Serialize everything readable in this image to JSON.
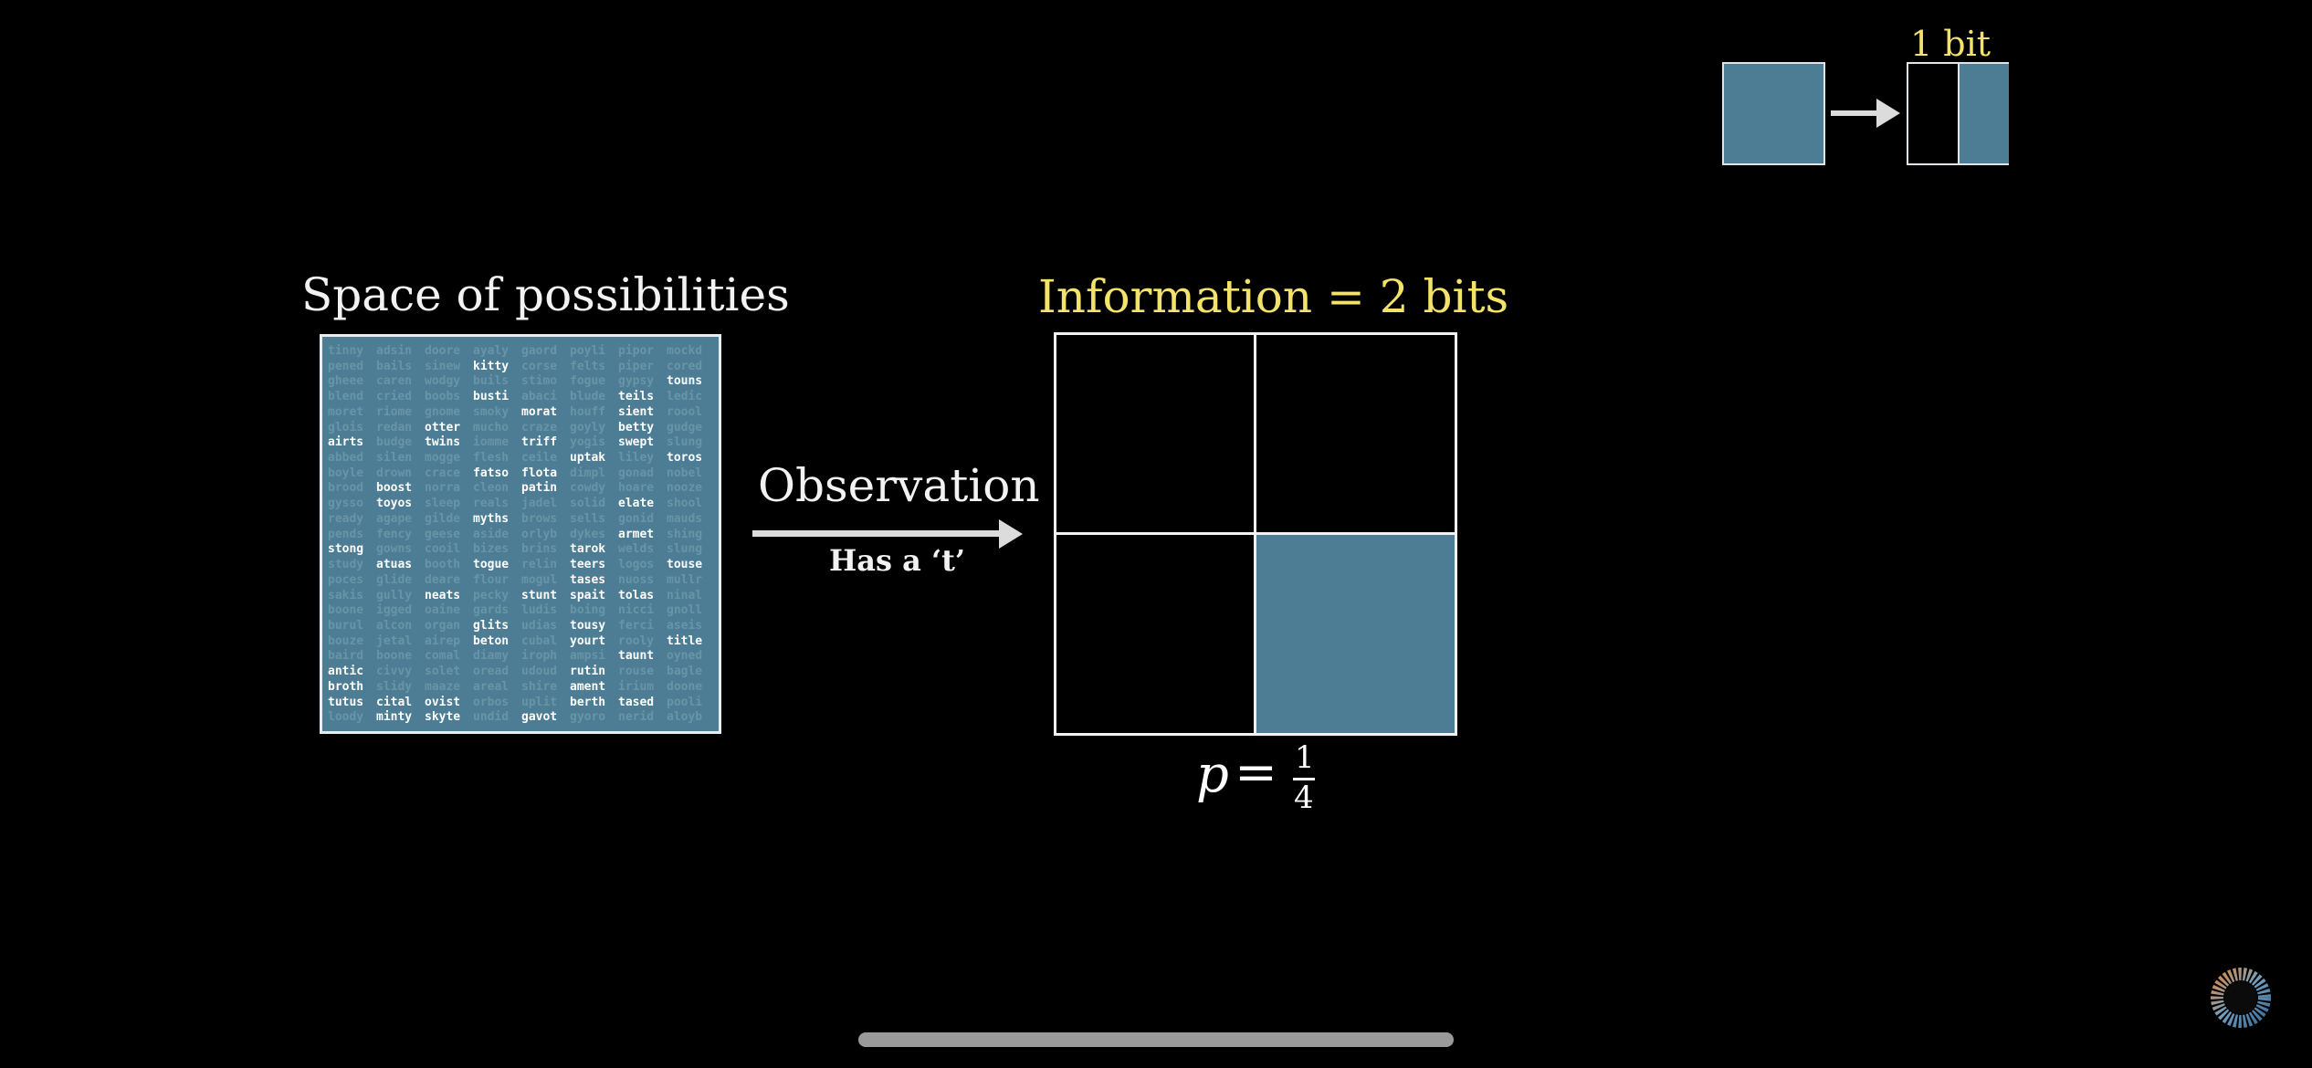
{
  "titles": {
    "space": "Space of possibilities",
    "information": "Information = 2 bits",
    "one_bit": "1 bit",
    "observation": "Observation",
    "observation_sub": "Has a ‘t’"
  },
  "probability": {
    "variable": "p",
    "equals": "=",
    "numerator": "1",
    "denominator": "4"
  },
  "colors": {
    "accent_blue": "#4c7d94",
    "highlight_yellow": "#f3e36a",
    "background": "#000000"
  },
  "icons": {
    "loading": "progress-ring-icon"
  },
  "word_grid": {
    "columns": 8,
    "highlighted": [
      "kitty",
      "touns",
      "busti",
      "teils",
      "morat",
      "sient",
      "otter",
      "betty",
      "airts",
      "twins",
      "triff",
      "swept",
      "uptak",
      "toros",
      "fatso",
      "flota",
      "boost",
      "patin",
      "toyos",
      "elate",
      "myths",
      "armet",
      "stong",
      "tarok",
      "atuas",
      "togue",
      "teers",
      "touse",
      "tases",
      "neats",
      "stunt",
      "spait",
      "tolas",
      "glits",
      "tousy",
      "beton",
      "yourt",
      "title",
      "taunt",
      "antic",
      "rutin",
      "broth",
      "ament",
      "tutus",
      "cital",
      "ovist",
      "berth",
      "tased",
      "minty",
      "skyte",
      "gavot"
    ],
    "cells": [
      [
        "tinny",
        "adsin",
        "doore",
        "ayaly",
        "gaord",
        "poyli",
        "pipor",
        "mockd"
      ],
      [
        "pened",
        "bails",
        "sinew",
        "kitty",
        "corse",
        "felts",
        "piper",
        "cored"
      ],
      [
        "gheee",
        "caren",
        "wodgy",
        "buils",
        "stimo",
        "fogue",
        "gypsy",
        "touns"
      ],
      [
        "blend",
        "cried",
        "boobs",
        "busti",
        "abaci",
        "blude",
        "teils",
        "ledic"
      ],
      [
        "moret",
        "riome",
        "gnome",
        "smoky",
        "morat",
        "houff",
        "sient",
        "roool"
      ],
      [
        "glois",
        "redan",
        "otter",
        "mucho",
        "craze",
        "goyly",
        "betty",
        "gudge"
      ],
      [
        "airts",
        "budge",
        "twins",
        "iomme",
        "triff",
        "yogis",
        "swept",
        "slung"
      ],
      [
        "abbed",
        "silen",
        "mogge",
        "flesh",
        "ceile",
        "uptak",
        "liley",
        "toros"
      ],
      [
        "boyle",
        "drown",
        "crace",
        "fatso",
        "flota",
        "dimpl",
        "gonad",
        "nobel"
      ],
      [
        "brood",
        "boost",
        "norra",
        "cleon",
        "patin",
        "cowdy",
        "hoare",
        "nooze"
      ],
      [
        "gysso",
        "toyos",
        "sleep",
        "reals",
        "jadel",
        "solid",
        "elate",
        "shool"
      ],
      [
        "ready",
        "agape",
        "gilde",
        "myths",
        "brows",
        "sells",
        "gonid",
        "mauds"
      ],
      [
        "pends",
        "fency",
        "geese",
        "aside",
        "orlyb",
        "dykes",
        "armet",
        "shing"
      ],
      [
        "stong",
        "gowns",
        "cooil",
        "bizes",
        "brins",
        "tarok",
        "welds",
        "slung"
      ],
      [
        "study",
        "atuas",
        "booth",
        "togue",
        "relin",
        "teers",
        "logos",
        "touse"
      ],
      [
        "poces",
        "glide",
        "deare",
        "flour",
        "mogul",
        "tases",
        "nuoss",
        "mullr"
      ],
      [
        "sakis",
        "gully",
        "neats",
        "pecky",
        "stunt",
        "spait",
        "tolas",
        "ninal"
      ],
      [
        "boone",
        "igged",
        "oaine",
        "gards",
        "ludis",
        "boing",
        "nicci",
        "gnoll"
      ],
      [
        "burul",
        "alcon",
        "organ",
        "glits",
        "udias",
        "tousy",
        "ferci",
        "aseis"
      ],
      [
        "bouze",
        "jetal",
        "airep",
        "beton",
        "cubal",
        "yourt",
        "rooly",
        "title"
      ],
      [
        "baird",
        "boone",
        "comal",
        "diamy",
        "iroph",
        "ampsi",
        "taunt",
        "oyned"
      ],
      [
        "antic",
        "civvy",
        "solet",
        "oread",
        "udoud",
        "rutin",
        "rouse",
        "bagle"
      ],
      [
        "broth",
        "slidy",
        "maaze",
        "areal",
        "shire",
        "ament",
        "irium",
        "doone"
      ],
      [
        "tutus",
        "cital",
        "ovist",
        "orbos",
        "uplit",
        "berth",
        "tased",
        "pooli"
      ],
      [
        "loody",
        "minty",
        "skyte",
        "undid",
        "gavot",
        "gyoro",
        "nerid",
        "aloyb"
      ]
    ]
  }
}
